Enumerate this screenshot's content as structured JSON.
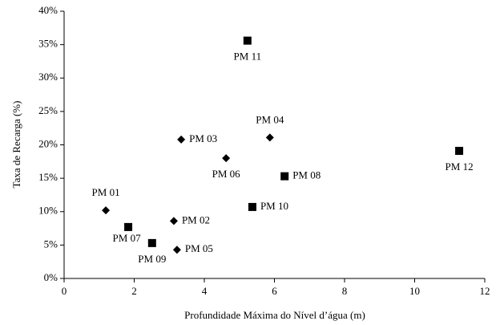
{
  "chart_data": {
    "type": "scatter",
    "x_label": "Profundidade Máxima do Nível d’água (m)",
    "y_label": "Taxa de Recarga (%)",
    "xlim": [
      0,
      12
    ],
    "xticks": [
      0,
      2,
      4,
      6,
      8,
      10,
      12
    ],
    "ylim": [
      0,
      40
    ],
    "yticks": [
      {
        "value": 0,
        "label": "0%"
      },
      {
        "value": 5,
        "label": "5%"
      },
      {
        "value": 10,
        "label": "10%"
      },
      {
        "value": 15,
        "label": "15%"
      },
      {
        "value": 20,
        "label": "20%"
      },
      {
        "value": 25,
        "label": "25%"
      },
      {
        "value": 30,
        "label": "30%"
      },
      {
        "value": 35,
        "label": "35%"
      },
      {
        "value": 40,
        "label": "40%"
      }
    ],
    "series": [
      {
        "marker": "diamond",
        "color": "#000000",
        "x": [
          1.19,
          3.13,
          3.34,
          5.87,
          3.22,
          4.62
        ],
        "values": [
          10.2,
          8.6,
          20.8,
          21.1,
          4.3,
          18.0
        ],
        "point_labels": [
          "PM 01",
          "PM 02",
          "PM 03",
          "PM 04",
          "PM 05",
          "PM 06"
        ]
      },
      {
        "marker": "square",
        "color": "#000000",
        "x": [
          1.83,
          6.29,
          2.51,
          5.37,
          5.23,
          11.27
        ],
        "values": [
          7.7,
          15.3,
          5.3,
          10.7,
          35.6,
          19.1
        ],
        "point_labels": [
          "PM 07",
          "PM 08",
          "PM 09",
          "PM 10",
          "PM 11",
          "PM 12"
        ]
      }
    ]
  }
}
